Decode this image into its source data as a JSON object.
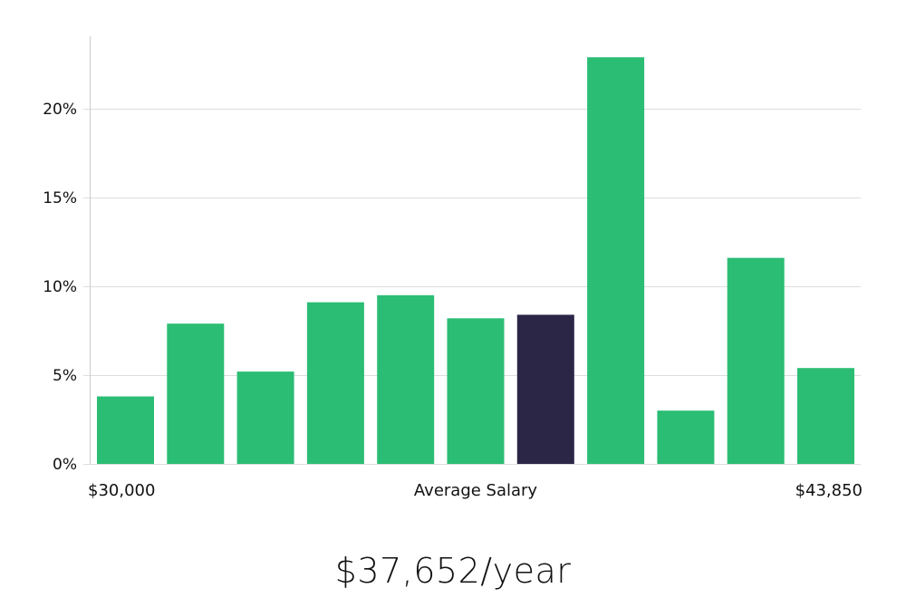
{
  "chart_data": {
    "type": "bar",
    "x_axis": {
      "min_label": "$30,000",
      "center_label": "Average Salary",
      "max_label": "$43,850"
    },
    "y_ticks": [
      "0%",
      "5%",
      "10%",
      "15%",
      "20%"
    ],
    "ylim": [
      0,
      24
    ],
    "grid": true,
    "values": [
      3.8,
      7.9,
      5.2,
      9.1,
      9.5,
      8.2,
      8.4,
      22.9,
      3.0,
      11.6,
      5.4
    ],
    "highlight_index": 6,
    "colors": {
      "bar": "#2bbd74",
      "highlight": "#2b2546",
      "grid": "#dddddd",
      "axis": "#cccccc"
    }
  },
  "salary_summary": "$37,652/year"
}
